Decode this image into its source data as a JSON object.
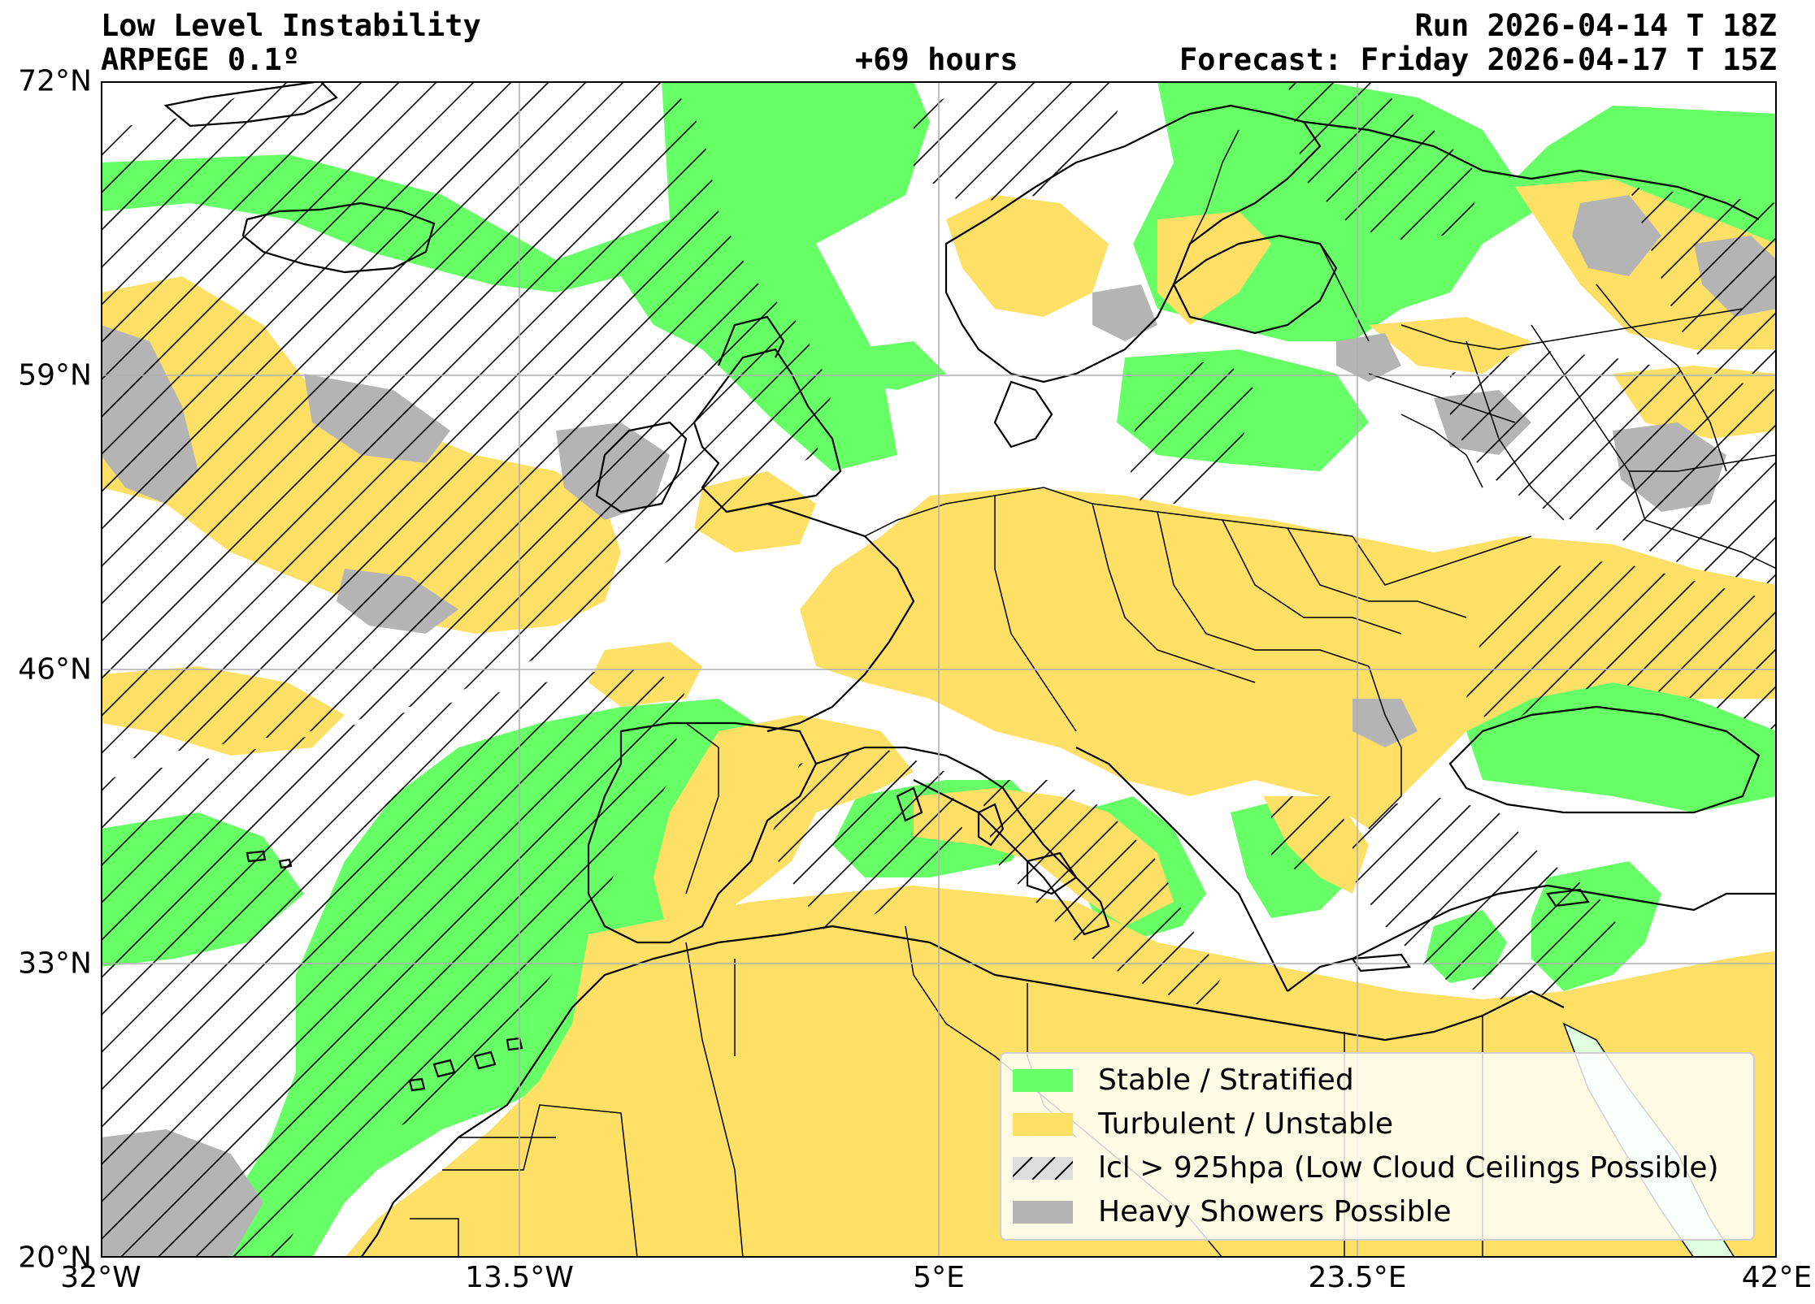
{
  "header": {
    "title": "Low Level Instability",
    "model": "ARPEGE 0.1º",
    "lead_time": "+69 hours",
    "run": "Run 2026-04-14 T 18Z",
    "forecast": "Forecast: Friday 2026-04-17 T 15Z"
  },
  "axes": {
    "y_ticks": [
      "72°N",
      "59°N",
      "46°N",
      "33°N",
      "20°N"
    ],
    "x_ticks": [
      "32°W",
      "13.5°W",
      "5°E",
      "23.5°E",
      "42°E"
    ],
    "lat_range": [
      20,
      72
    ],
    "lon_range": [
      -32,
      42
    ],
    "grid": true
  },
  "legend": {
    "position": "lower-right",
    "items": [
      {
        "label": "Stable / Stratified",
        "color": "#66ff66",
        "swatch": "solid"
      },
      {
        "label": "Turbulent / Unstable",
        "color": "#ffe066",
        "swatch": "solid"
      },
      {
        "label": "lcl > 925hpa (Low Cloud Ceilings Possible)",
        "color": "#dddddd",
        "swatch": "hatched"
      },
      {
        "label": "Heavy Showers Possible",
        "color": "#b4b4b4",
        "swatch": "solid"
      }
    ]
  },
  "colors": {
    "stable": "#66ff66",
    "unstable": "#ffe066",
    "showers": "#b4b4b4",
    "background": "#ffffff"
  }
}
